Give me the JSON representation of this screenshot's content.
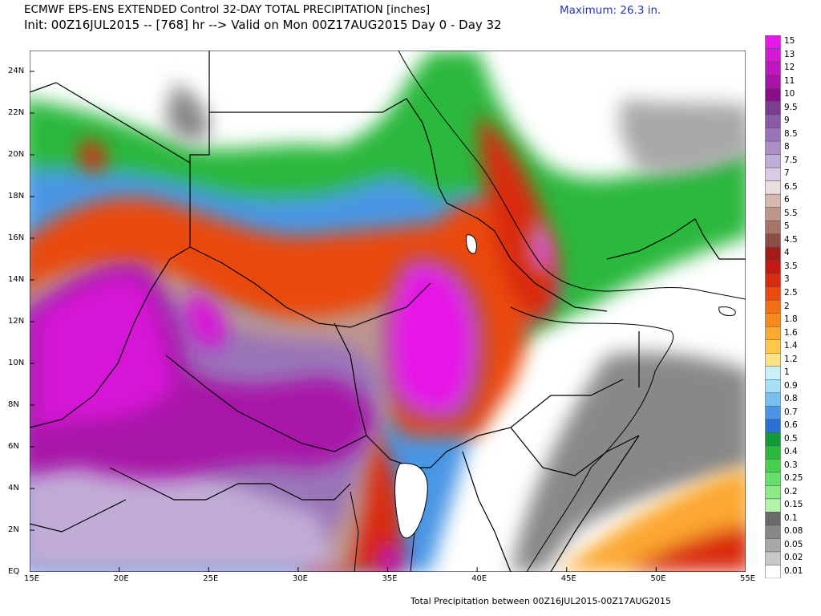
{
  "header": {
    "line1": "ECMWF EPS-ENS EXTENDED Control 32-DAY TOTAL PRECIPITATION [inches]",
    "line2": "Init: 00Z16JUL2015 -- [768] hr --> Valid on Mon 00Z17AUG2015  Day 0 - Day 32",
    "maximum": "Maximum:  26.3 in."
  },
  "footer": "Total Precipitation between 00Z16JUL2015-00Z17AUG2015",
  "map": {
    "lat_labels": [
      "24N",
      "22N",
      "20N",
      "18N",
      "16N",
      "14N",
      "12N",
      "10N",
      "8N",
      "6N",
      "4N",
      "2N",
      "EQ"
    ],
    "lon_labels": [
      "15E",
      "20E",
      "25E",
      "30E",
      "35E",
      "40E",
      "45E",
      "50E",
      "55E"
    ]
  },
  "colorbar": {
    "levels": [
      "15",
      "13",
      "12",
      "11",
      "10",
      "9.5",
      "9",
      "8.5",
      "8",
      "7.5",
      "7",
      "6.5",
      "6",
      "5.5",
      "5",
      "4.5",
      "4",
      "3.5",
      "3",
      "2.5",
      "2",
      "1.8",
      "1.6",
      "1.4",
      "1.2",
      "1",
      "0.9",
      "0.8",
      "0.7",
      "0.6",
      "0.5",
      "0.4",
      "0.3",
      "0.25",
      "0.2",
      "0.15",
      "0.1",
      "0.08",
      "0.05",
      "0.02",
      "0.01"
    ],
    "colors": [
      "#e619e6",
      "#d619d6",
      "#c016c0",
      "#a812a8",
      "#8a0e8a",
      "#7a3d8f",
      "#8a5aa6",
      "#9a74b8",
      "#ad8fc8",
      "#c1acd6",
      "#d8cbe3",
      "#ecdedd",
      "#d6b8b0",
      "#bf968c",
      "#a87369",
      "#8a4e46",
      "#a31d16",
      "#c21a12",
      "#d92b10",
      "#ea4a10",
      "#f46f14",
      "#fa8a1a",
      "#fca832",
      "#fdc84c",
      "#fde284",
      "#c8f0f8",
      "#a6e0f8",
      "#78c0f0",
      "#4a96e4",
      "#2a70d8",
      "#139a3a",
      "#2ab83e",
      "#48cf4e",
      "#68df6a",
      "#8ceb86",
      "#b4f4aa",
      "#6a6a6a",
      "#888888",
      "#a8a8a8",
      "#c8c8c8",
      "#ffffff"
    ]
  }
}
